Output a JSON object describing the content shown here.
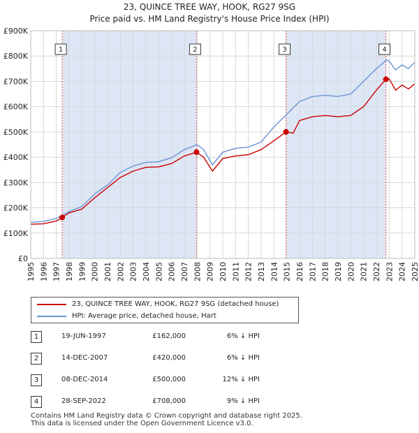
{
  "chart_data": {
    "type": "line",
    "title": "23, QUINCE TREE WAY, HOOK, RG27 9SG",
    "subtitle": "Price paid vs. HM Land Registry's House Price Index (HPI)",
    "xlabel": "",
    "ylabel": "",
    "xlim": [
      1995,
      2025
    ],
    "ylim": [
      0,
      900000
    ],
    "x_ticks": [
      "1995",
      "1996",
      "1997",
      "1998",
      "1999",
      "2000",
      "2001",
      "2002",
      "2003",
      "2004",
      "2005",
      "2006",
      "2007",
      "2008",
      "2009",
      "2010",
      "2011",
      "2012",
      "2013",
      "2014",
      "2015",
      "2016",
      "2017",
      "2018",
      "2019",
      "2020",
      "2021",
      "2022",
      "2023",
      "2024",
      "2025"
    ],
    "y_ticks": [
      {
        "value": 0,
        "label": "£0"
      },
      {
        "value": 100000,
        "label": "£100K"
      },
      {
        "value": 200000,
        "label": "£200K"
      },
      {
        "value": 300000,
        "label": "£300K"
      },
      {
        "value": 400000,
        "label": "£400K"
      },
      {
        "value": 500000,
        "label": "£500K"
      },
      {
        "value": 600000,
        "label": "£600K"
      },
      {
        "value": 700000,
        "label": "£700K"
      },
      {
        "value": 800000,
        "label": "£800K"
      },
      {
        "value": 900000,
        "label": "£900K"
      }
    ],
    "grid": true,
    "series": [
      {
        "name": "23, QUINCE TREE WAY, HOOK, RG27 9SG (detached house)",
        "color": "#cc0000",
        "points": [
          [
            1995.0,
            135000
          ],
          [
            1996.0,
            137000
          ],
          [
            1997.0,
            148000
          ],
          [
            1997.46,
            162000
          ],
          [
            1998.0,
            180000
          ],
          [
            1999.0,
            195000
          ],
          [
            2000.0,
            240000
          ],
          [
            2001.0,
            280000
          ],
          [
            2002.0,
            320000
          ],
          [
            2003.0,
            345000
          ],
          [
            2004.0,
            360000
          ],
          [
            2005.0,
            362000
          ],
          [
            2006.0,
            375000
          ],
          [
            2007.0,
            405000
          ],
          [
            2007.95,
            420000
          ],
          [
            2008.5,
            400000
          ],
          [
            2009.2,
            345000
          ],
          [
            2010.0,
            395000
          ],
          [
            2011.0,
            405000
          ],
          [
            2012.0,
            410000
          ],
          [
            2013.0,
            430000
          ],
          [
            2014.0,
            465000
          ],
          [
            2014.94,
            500000
          ],
          [
            2015.5,
            495000
          ],
          [
            2016.0,
            545000
          ],
          [
            2017.0,
            560000
          ],
          [
            2018.0,
            565000
          ],
          [
            2019.0,
            560000
          ],
          [
            2020.0,
            565000
          ],
          [
            2021.0,
            600000
          ],
          [
            2022.0,
            665000
          ],
          [
            2022.74,
            708000
          ],
          [
            2023.0,
            710000
          ],
          [
            2023.5,
            665000
          ],
          [
            2024.0,
            685000
          ],
          [
            2024.5,
            670000
          ],
          [
            2025.0,
            690000
          ]
        ]
      },
      {
        "name": "HPI: Average price, detached house, Hart",
        "color": "#6a93d4",
        "points": [
          [
            1995.0,
            142000
          ],
          [
            1996.0,
            146000
          ],
          [
            1997.0,
            158000
          ],
          [
            1998.0,
            185000
          ],
          [
            1999.0,
            205000
          ],
          [
            2000.0,
            255000
          ],
          [
            2001.0,
            290000
          ],
          [
            2002.0,
            340000
          ],
          [
            2003.0,
            365000
          ],
          [
            2004.0,
            380000
          ],
          [
            2005.0,
            382000
          ],
          [
            2006.0,
            398000
          ],
          [
            2007.0,
            430000
          ],
          [
            2008.0,
            450000
          ],
          [
            2008.5,
            430000
          ],
          [
            2009.2,
            370000
          ],
          [
            2010.0,
            420000
          ],
          [
            2011.0,
            435000
          ],
          [
            2012.0,
            440000
          ],
          [
            2013.0,
            460000
          ],
          [
            2014.0,
            520000
          ],
          [
            2015.0,
            570000
          ],
          [
            2016.0,
            620000
          ],
          [
            2017.0,
            640000
          ],
          [
            2018.0,
            645000
          ],
          [
            2019.0,
            640000
          ],
          [
            2020.0,
            650000
          ],
          [
            2021.0,
            700000
          ],
          [
            2022.0,
            750000
          ],
          [
            2022.8,
            785000
          ],
          [
            2023.0,
            780000
          ],
          [
            2023.5,
            745000
          ],
          [
            2024.0,
            765000
          ],
          [
            2024.5,
            750000
          ],
          [
            2025.0,
            775000
          ]
        ]
      }
    ],
    "sales": [
      {
        "marker": "1",
        "x": 1997.46,
        "price": 162000
      },
      {
        "marker": "2",
        "x": 2007.95,
        "price": 420000
      },
      {
        "marker": "3",
        "x": 2014.94,
        "price": 500000
      },
      {
        "marker": "4",
        "x": 2022.74,
        "price": 708000
      }
    ],
    "shade_color": "#dde6f5",
    "vline_color": "#e05050"
  },
  "legend": {
    "items": [
      {
        "label": "23, QUINCE TREE WAY, HOOK, RG27 9SG (detached house)",
        "color": "#cc0000"
      },
      {
        "label": "HPI: Average price, detached house, Hart",
        "color": "#6a93d4"
      }
    ]
  },
  "table": {
    "rows": [
      {
        "marker": "1",
        "date": "19-JUN-1997",
        "price": "£162,000",
        "hpi": "6% ↓ HPI"
      },
      {
        "marker": "2",
        "date": "14-DEC-2007",
        "price": "£420,000",
        "hpi": "6% ↓ HPI"
      },
      {
        "marker": "3",
        "date": "08-DEC-2014",
        "price": "£500,000",
        "hpi": "12% ↓ HPI"
      },
      {
        "marker": "4",
        "date": "28-SEP-2022",
        "price": "£708,000",
        "hpi": "9% ↓ HPI"
      }
    ]
  },
  "footer": {
    "line1": "Contains HM Land Registry data © Crown copyright and database right 2025.",
    "line2": "This data is licensed under the Open Government Licence v3.0."
  }
}
